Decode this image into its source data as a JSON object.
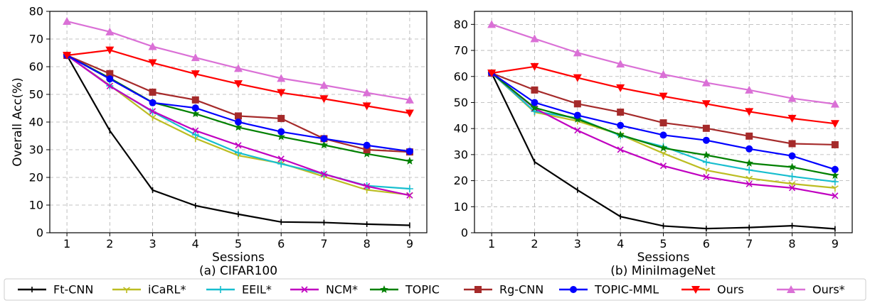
{
  "chart_data": [
    {
      "type": "line",
      "caption": "(a) CIFAR100",
      "xlabel": "Sessions",
      "ylabel": "Overall Acc(%)",
      "x": [
        1,
        2,
        3,
        4,
        5,
        6,
        7,
        8,
        9
      ],
      "xlim": [
        0.6,
        9.4
      ],
      "ylim": [
        0,
        80
      ],
      "yticks": [
        0,
        10,
        20,
        30,
        40,
        50,
        60,
        70,
        80
      ],
      "grid": true,
      "series": [
        {
          "name": "Ft-CNN",
          "values": [
            64.1,
            36.9,
            15.4,
            9.8,
            6.7,
            3.9,
            3.7,
            3.1,
            2.7
          ]
        },
        {
          "name": "iCaRL*",
          "values": [
            64.1,
            53.3,
            41.7,
            34.1,
            27.9,
            25.1,
            20.3,
            15.5,
            13.7
          ]
        },
        {
          "name": "EEIL*",
          "values": [
            64.1,
            53.1,
            43.7,
            35.4,
            28.9,
            24.9,
            21.2,
            17.0,
            15.9
          ]
        },
        {
          "name": "NCM*",
          "values": [
            64.1,
            53.0,
            43.9,
            36.9,
            31.6,
            26.7,
            21.2,
            16.8,
            13.5
          ]
        },
        {
          "name": "TOPIC",
          "values": [
            64.1,
            55.9,
            47.1,
            43.0,
            38.1,
            34.7,
            31.7,
            28.5,
            25.9
          ]
        },
        {
          "name": "Rg-CNN",
          "values": [
            64.1,
            57.5,
            50.8,
            48.0,
            42.2,
            41.3,
            34.0,
            30.0,
            29.2
          ]
        },
        {
          "name": "TOPIC-MML",
          "values": [
            64.1,
            55.6,
            47.0,
            45.1,
            40.0,
            36.5,
            34.0,
            31.6,
            29.4
          ]
        },
        {
          "name": "Ours",
          "values": [
            64.1,
            66.0,
            61.4,
            57.4,
            53.8,
            50.6,
            48.4,
            45.8,
            43.2
          ]
        },
        {
          "name": "Ours*",
          "values": [
            76.4,
            72.6,
            67.3,
            63.3,
            59.4,
            55.8,
            53.3,
            50.6,
            48.0
          ]
        }
      ]
    },
    {
      "type": "line",
      "caption": "(b) MiniImageNet",
      "xlabel": "Sessions",
      "ylabel": "",
      "x": [
        1,
        2,
        3,
        4,
        5,
        6,
        7,
        8,
        9
      ],
      "xlim": [
        0.6,
        9.4
      ],
      "ylim": [
        0,
        85
      ],
      "yticks": [
        0,
        10,
        20,
        30,
        40,
        50,
        60,
        70,
        80
      ],
      "grid": true,
      "series": [
        {
          "name": "Ft-CNN",
          "values": [
            61.3,
            27.2,
            16.4,
            6.2,
            2.6,
            1.6,
            2.0,
            2.7,
            1.5
          ]
        },
        {
          "name": "iCaRL*",
          "values": [
            61.3,
            46.3,
            42.9,
            37.6,
            30.5,
            24.0,
            20.9,
            18.8,
            17.2
          ]
        },
        {
          "name": "EEIL*",
          "values": [
            61.3,
            46.6,
            44.0,
            37.3,
            33.1,
            27.1,
            24.1,
            21.6,
            19.6
          ]
        },
        {
          "name": "NCM*",
          "values": [
            61.3,
            47.8,
            39.3,
            31.9,
            25.7,
            21.4,
            18.7,
            17.2,
            14.2
          ]
        },
        {
          "name": "TOPIC",
          "values": [
            61.3,
            48.0,
            43.6,
            37.6,
            32.5,
            29.8,
            26.7,
            25.2,
            22.0
          ]
        },
        {
          "name": "Rg-CNN",
          "values": [
            61.3,
            54.8,
            49.5,
            46.3,
            42.2,
            40.1,
            37.1,
            34.2,
            33.8
          ]
        },
        {
          "name": "TOPIC-MML",
          "values": [
            61.3,
            50.0,
            45.1,
            41.2,
            37.5,
            35.5,
            32.2,
            29.5,
            24.3
          ]
        },
        {
          "name": "Ours",
          "values": [
            61.3,
            63.8,
            59.5,
            55.6,
            52.4,
            49.5,
            46.5,
            43.9,
            41.9
          ]
        },
        {
          "name": "Ours*",
          "values": [
            80.0,
            74.5,
            69.1,
            64.8,
            60.8,
            57.6,
            54.8,
            51.6,
            49.4
          ]
        }
      ]
    }
  ],
  "legend": {
    "placement": "bottom",
    "items": [
      {
        "name": "Ft-CNN",
        "color": "#000000",
        "marker": "tick"
      },
      {
        "name": "iCaRL*",
        "color": "#bcbd22",
        "marker": "tri-down"
      },
      {
        "name": "EEIL*",
        "color": "#17becf",
        "marker": "plus"
      },
      {
        "name": "NCM*",
        "color": "#c000c0",
        "marker": "x"
      },
      {
        "name": "TOPIC",
        "color": "#008000",
        "marker": "star"
      },
      {
        "name": "Rg-CNN",
        "color": "#a52a2a",
        "marker": "square"
      },
      {
        "name": "TOPIC-MML",
        "color": "#0000ff",
        "marker": "circle"
      },
      {
        "name": "Ours",
        "color": "#ff0000",
        "marker": "triangle-down"
      },
      {
        "name": "Ours*",
        "color": "#da70d6",
        "marker": "triangle-up"
      }
    ]
  }
}
